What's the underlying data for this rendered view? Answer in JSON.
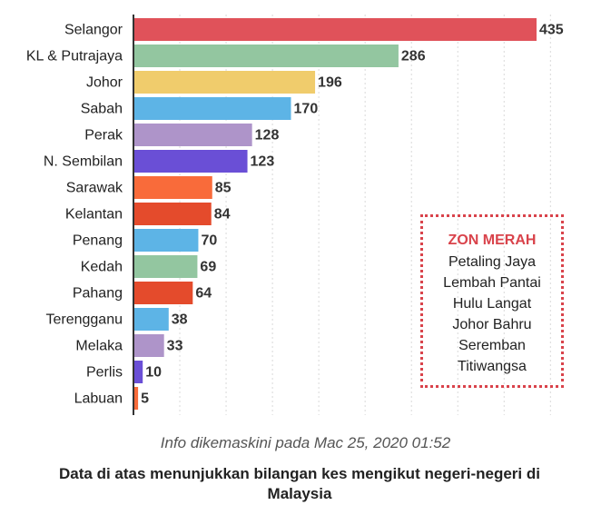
{
  "chart_data": {
    "type": "bar",
    "orientation": "horizontal",
    "categories": [
      "Selangor",
      "KL & Putrajaya",
      "Johor",
      "Sabah",
      "Perak",
      "N. Sembilan",
      "Sarawak",
      "Kelantan",
      "Penang",
      "Kedah",
      "Pahang",
      "Terengganu",
      "Melaka",
      "Perlis",
      "Labuan"
    ],
    "values": [
      435,
      286,
      196,
      170,
      128,
      123,
      85,
      84,
      70,
      69,
      64,
      38,
      33,
      10,
      5
    ],
    "colors": [
      "#e0525a",
      "#93c6a0",
      "#f0cc6c",
      "#5db4e6",
      "#ae94c9",
      "#6a4fd6",
      "#f96b3a",
      "#e44b2c",
      "#5db4e6",
      "#93c6a0",
      "#e44b2c",
      "#5db4e6",
      "#ae94c9",
      "#6a4fd6",
      "#f96b3a"
    ],
    "xlim": [
      0,
      450
    ],
    "grid": "vertical-dotted",
    "legend": "none"
  },
  "zone": {
    "title": "ZON MERAH",
    "items": [
      "Petaling Jaya",
      "Lembah Pantai",
      "Hulu Langat",
      "Johor Bahru",
      "Seremban",
      "Titiwangsa"
    ]
  },
  "footer": {
    "info": "Info dikemaskini pada Mac 25, 2020 01:52",
    "note": "Data di atas menunjukkan bilangan kes mengikut negeri-negeri di Malaysia"
  }
}
